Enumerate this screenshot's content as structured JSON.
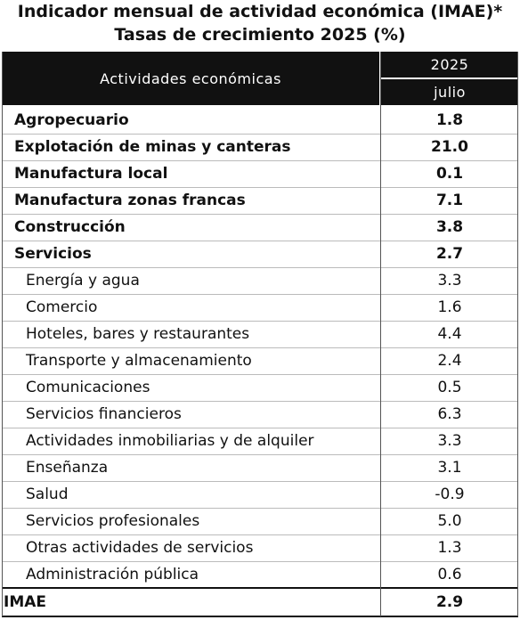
{
  "header": {
    "title": "Indicador mensual de actividad económica (IMAE)*",
    "subtitle": "Tasas de crecimiento 2025 (%)"
  },
  "table": {
    "columns": [
      "Actividades económicas",
      "2025",
      "julio"
    ],
    "rows": [
      [
        "Agropecuario",
        "1.8"
      ],
      [
        "Explotación de minas y canteras",
        "21.0"
      ],
      [
        "Manufactura local",
        "0.1"
      ],
      [
        "Manufactura zonas francas",
        "7.1"
      ],
      [
        "Construcción",
        "3.8"
      ],
      [
        "Servicios",
        "2.7"
      ],
      [
        "Energía y agua",
        "3.3"
      ],
      [
        "Comercio",
        "1.6"
      ],
      [
        "Hoteles, bares y restaurantes",
        "4.4"
      ],
      [
        "Transporte y almacenamiento",
        "2.4"
      ],
      [
        "Comunicaciones",
        "0.5"
      ],
      [
        "Servicios financieros",
        "6.3"
      ],
      [
        "Actividades inmobiliarias y de alquiler",
        "3.3"
      ],
      [
        "Enseñanza",
        "3.1"
      ],
      [
        "Salud",
        "-0.9"
      ],
      [
        "Servicios profesionales",
        "5.0"
      ],
      [
        "Otras actividades de servicios",
        "1.3"
      ],
      [
        "Administración pública",
        "0.6"
      ],
      [
        "IMAE",
        "2.9"
      ]
    ]
  }
}
